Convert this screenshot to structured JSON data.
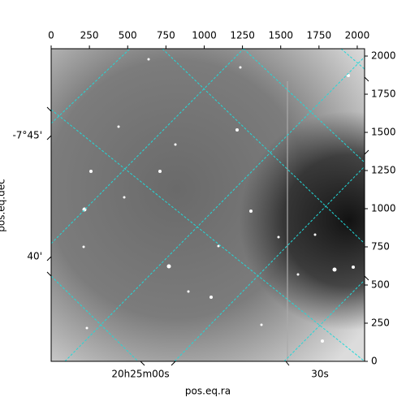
{
  "chart_data": {
    "type": "image",
    "xlabel": "pos.eq.ra",
    "ylabel": "pos.eq.dec",
    "xlim": [
      0,
      2048
    ],
    "ylim": [
      0,
      2048
    ],
    "xticks": [
      0,
      250,
      500,
      750,
      1000,
      1250,
      1500,
      1750,
      2000
    ],
    "yticks": [
      0,
      250,
      500,
      750,
      1000,
      1250,
      1500,
      1750,
      2000
    ],
    "ra_ticks": [
      "20h25m00s",
      "30s"
    ],
    "dec_ticks": [
      "-7°45'",
      "40'"
    ]
  }
}
